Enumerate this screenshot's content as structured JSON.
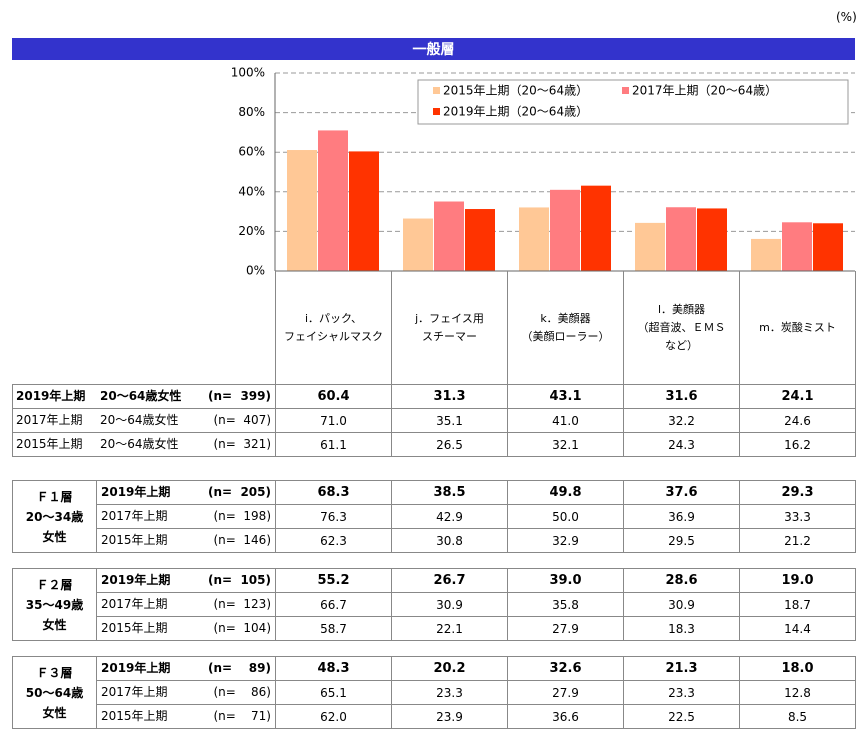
{
  "unit": "(%)",
  "chart_data": {
    "type": "bar",
    "title": "一般層",
    "categories": [
      "i．パック、\nフェイシャルマスク",
      "j．フェイス用\nスチーマー",
      "k．美顔器\n（美顔ローラー）",
      "l．美顔器\n（超音波、ＥＭＳ\nなど）",
      "m．炭酸ミスト"
    ],
    "series": [
      {
        "name": "2015年上期（20～64歳）",
        "color": "#ffc896",
        "values": [
          61.1,
          26.5,
          32.1,
          24.3,
          16.2
        ]
      },
      {
        "name": "2017年上期（20～64歳）",
        "color": "#ff7c80",
        "values": [
          71.0,
          35.1,
          41.0,
          32.2,
          24.6
        ]
      },
      {
        "name": "2019年上期（20～64歳）",
        "color": "#ff3300",
        "values": [
          60.4,
          31.3,
          43.1,
          31.6,
          24.1
        ]
      }
    ],
    "ylim": [
      0,
      100
    ],
    "yticks": [
      {
        "value": 0,
        "label": "0%"
      },
      {
        "value": 20,
        "label": "20%"
      },
      {
        "value": 40,
        "label": "40%"
      },
      {
        "value": 60,
        "label": "60%"
      },
      {
        "value": 80,
        "label": "80%"
      },
      {
        "value": 100,
        "label": "100%"
      }
    ],
    "grid": true,
    "legend": "upper right"
  },
  "table": {
    "general": [
      {
        "period": "2019年上期",
        "target": "20～64歳女性",
        "n": "(n=  399)",
        "values": [
          "60.4",
          "31.3",
          "43.1",
          "31.6",
          "24.1"
        ]
      },
      {
        "period": "2017年上期",
        "target": "20～64歳女性",
        "n": "(n=  407)",
        "values": [
          "71.0",
          "35.1",
          "41.0",
          "32.2",
          "24.6"
        ]
      },
      {
        "period": "2015年上期",
        "target": "20～64歳女性",
        "n": "(n=  321)",
        "values": [
          "61.1",
          "26.5",
          "32.1",
          "24.3",
          "16.2"
        ]
      }
    ],
    "groups": [
      {
        "label": "Ｆ１層\n20～34歳\n女性",
        "rows": [
          {
            "period": "2019年上期",
            "n": "(n=  205)",
            "values": [
              "68.3",
              "38.5",
              "49.8",
              "37.6",
              "29.3"
            ]
          },
          {
            "period": "2017年上期",
            "n": "(n=  198)",
            "values": [
              "76.3",
              "42.9",
              "50.0",
              "36.9",
              "33.3"
            ]
          },
          {
            "period": "2015年上期",
            "n": "(n=  146)",
            "values": [
              "62.3",
              "30.8",
              "32.9",
              "29.5",
              "21.2"
            ]
          }
        ]
      },
      {
        "label": "Ｆ２層\n35～49歳\n女性",
        "rows": [
          {
            "period": "2019年上期",
            "n": "(n=  105)",
            "values": [
              "55.2",
              "26.7",
              "39.0",
              "28.6",
              "19.0"
            ]
          },
          {
            "period": "2017年上期",
            "n": "(n=  123)",
            "values": [
              "66.7",
              "30.9",
              "35.8",
              "30.9",
              "18.7"
            ]
          },
          {
            "period": "2015年上期",
            "n": "(n=  104)",
            "values": [
              "58.7",
              "22.1",
              "27.9",
              "18.3",
              "14.4"
            ]
          }
        ]
      },
      {
        "label": "Ｆ３層\n50～64歳\n女性",
        "rows": [
          {
            "period": "2019年上期",
            "n": "(n=    89)",
            "values": [
              "48.3",
              "20.2",
              "32.6",
              "21.3",
              "18.0"
            ]
          },
          {
            "period": "2017年上期",
            "n": "(n=    86)",
            "values": [
              "65.1",
              "23.3",
              "27.9",
              "23.3",
              "12.8"
            ]
          },
          {
            "period": "2015年上期",
            "n": "(n=    71)",
            "values": [
              "62.0",
              "23.9",
              "36.6",
              "22.5",
              "8.5"
            ]
          }
        ]
      }
    ]
  }
}
